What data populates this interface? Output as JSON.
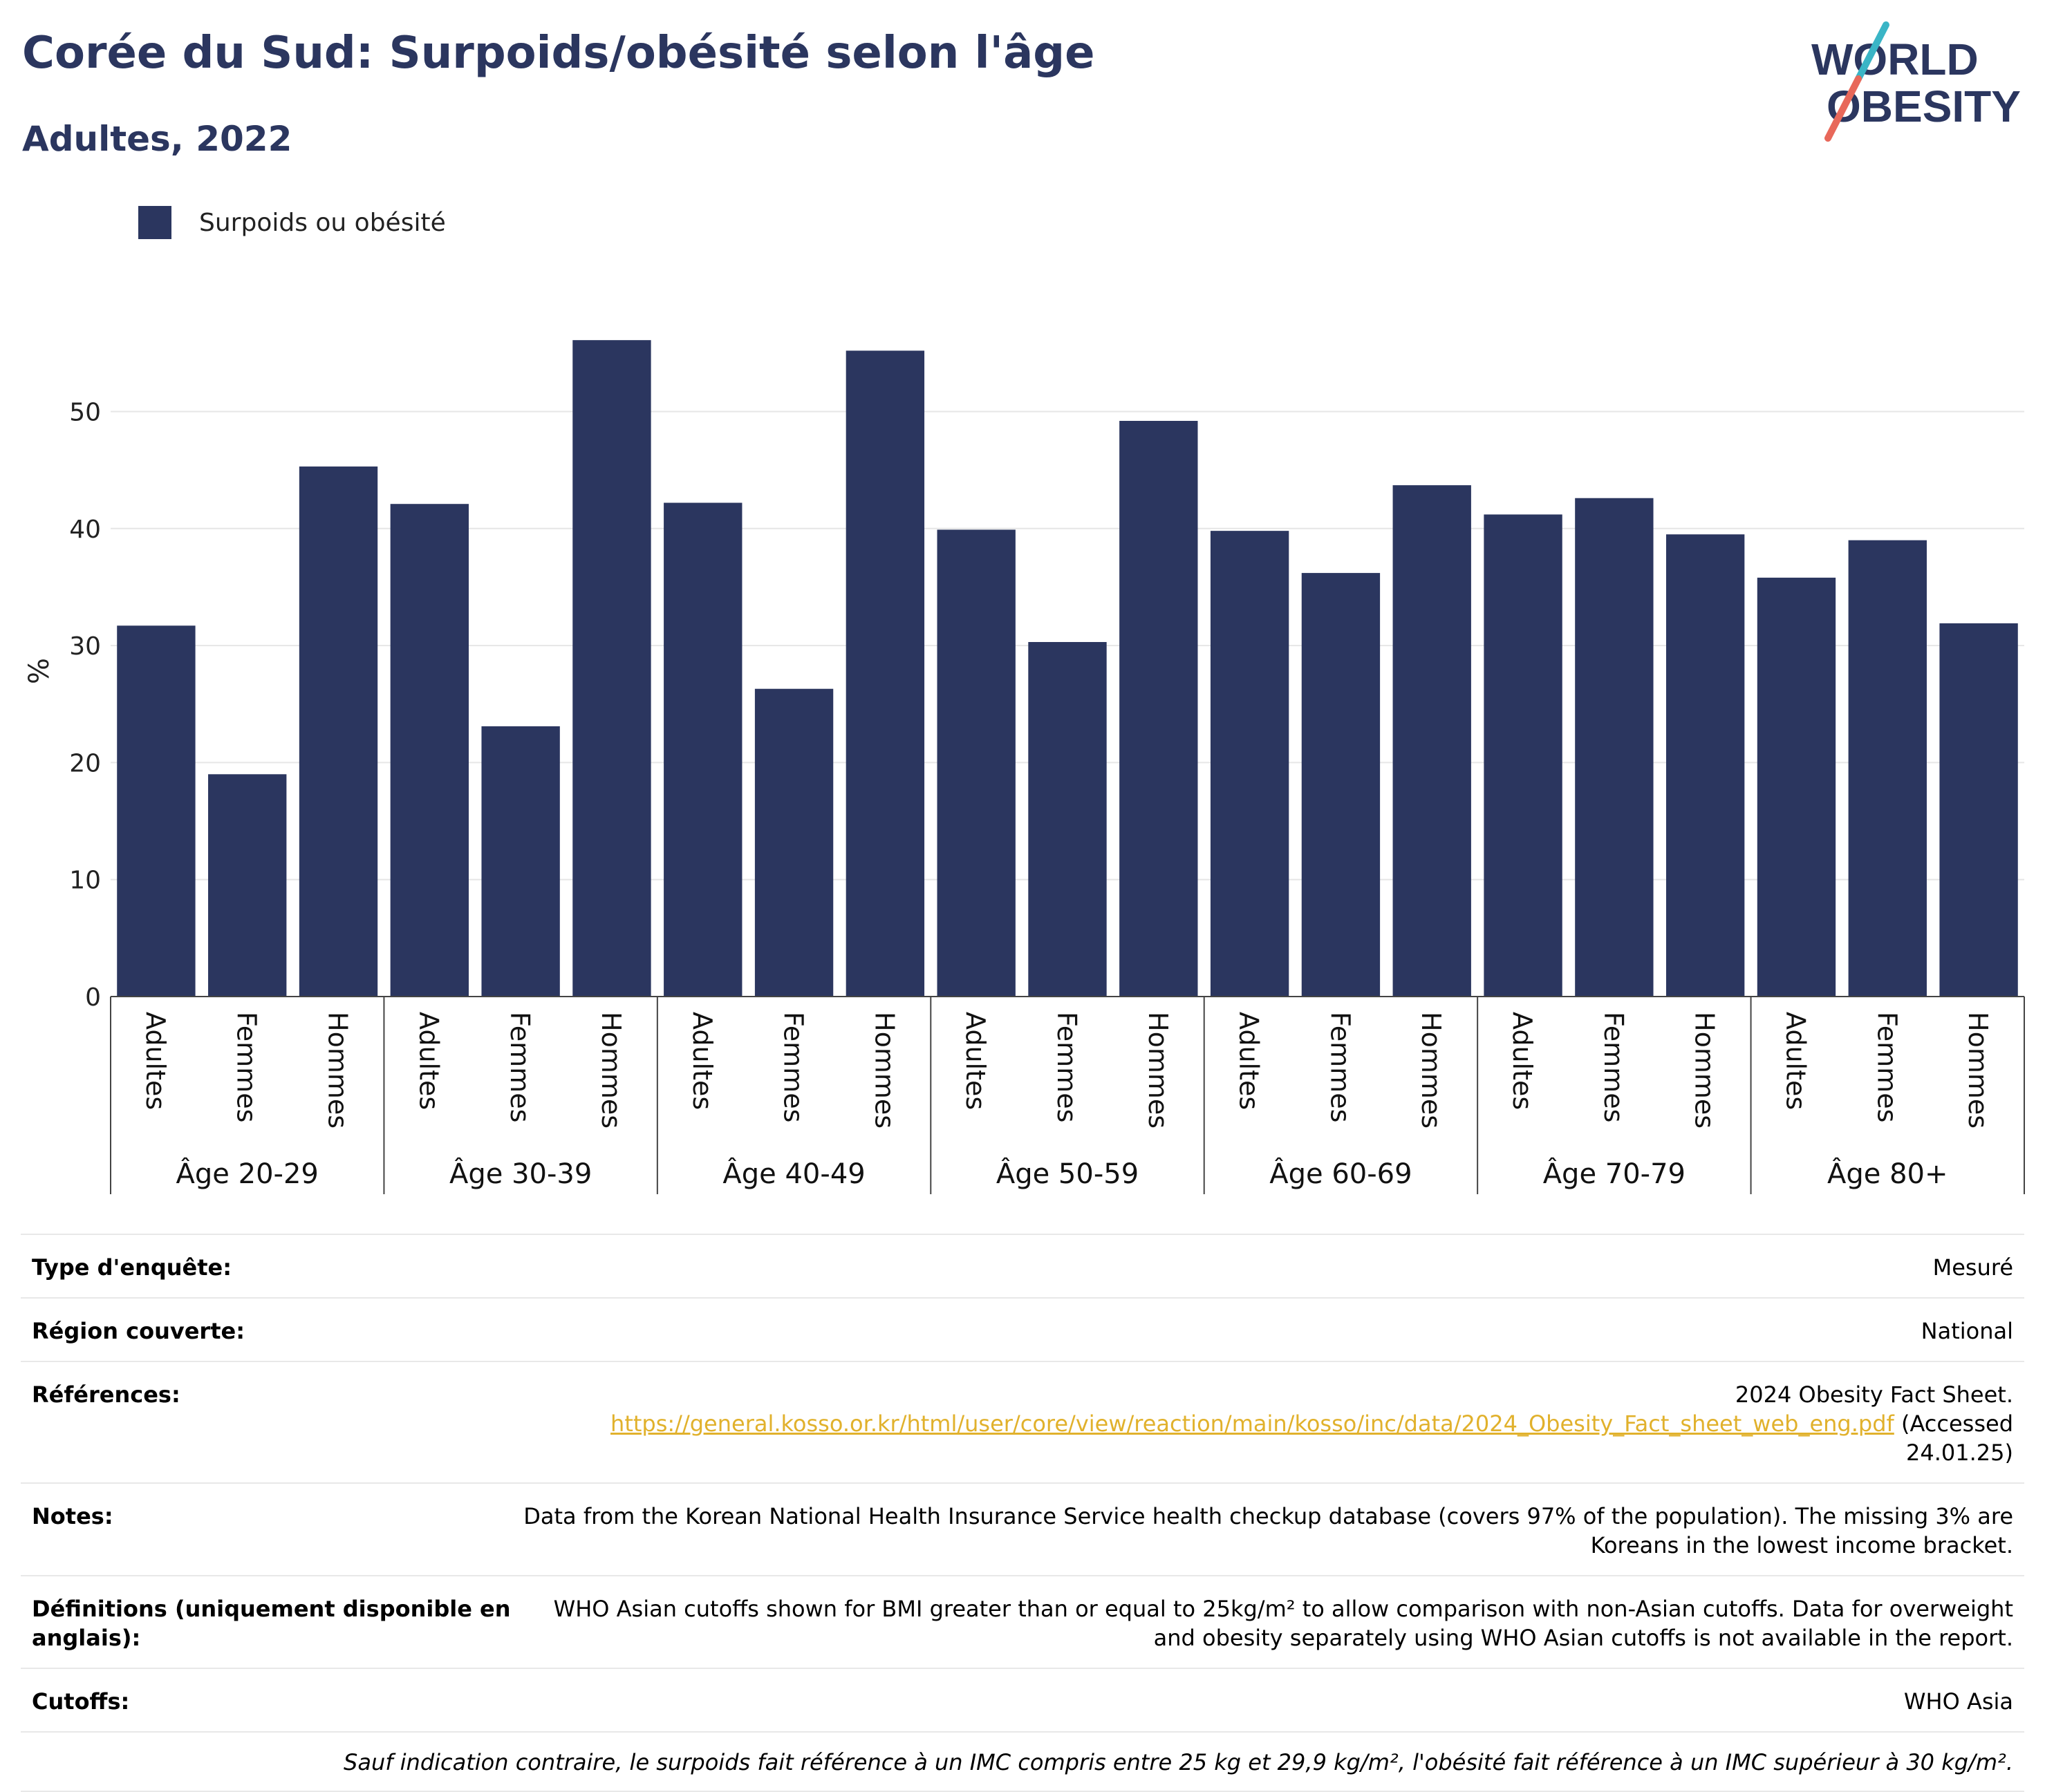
{
  "header": {
    "title": "Corée du Sud: Surpoids/obésité selon l'âge",
    "subtitle": "Adultes, 2022"
  },
  "logo": {
    "line1": "WORLD",
    "line2": "OBESITY",
    "colors": {
      "text": "#2b365f",
      "slash_top": "#3ab5c6",
      "slash_bottom": "#e8685a"
    }
  },
  "legend": {
    "label": "Surpoids ou obésité",
    "color": "#2b365f"
  },
  "chart_data": {
    "type": "bar",
    "ylabel": "%",
    "xlabel": "",
    "ylim": [
      0,
      58
    ],
    "yticks": [
      0,
      10,
      20,
      30,
      40,
      50
    ],
    "grid": true,
    "legend_position": "top-left",
    "bar_color": "#2b365f",
    "groups": [
      {
        "label": "Âge 20-29",
        "categories": [
          "Adultes",
          "Femmes",
          "Hommes"
        ],
        "values": [
          31.7,
          19.0,
          45.3
        ]
      },
      {
        "label": "Âge 30-39",
        "categories": [
          "Adultes",
          "Femmes",
          "Hommes"
        ],
        "values": [
          42.1,
          23.1,
          56.1
        ]
      },
      {
        "label": "Âge 40-49",
        "categories": [
          "Adultes",
          "Femmes",
          "Hommes"
        ],
        "values": [
          42.2,
          26.3,
          55.2
        ]
      },
      {
        "label": "Âge 50-59",
        "categories": [
          "Adultes",
          "Femmes",
          "Hommes"
        ],
        "values": [
          39.9,
          30.3,
          49.2
        ]
      },
      {
        "label": "Âge 60-69",
        "categories": [
          "Adultes",
          "Femmes",
          "Hommes"
        ],
        "values": [
          39.8,
          36.2,
          43.7
        ]
      },
      {
        "label": "Âge 70-79",
        "categories": [
          "Adultes",
          "Femmes",
          "Hommes"
        ],
        "values": [
          41.2,
          42.6,
          39.5
        ]
      },
      {
        "label": "Âge 80+",
        "categories": [
          "Adultes",
          "Femmes",
          "Hommes"
        ],
        "values": [
          35.8,
          39.0,
          31.9
        ]
      }
    ],
    "series": [
      {
        "name": "Surpoids ou obésité"
      }
    ]
  },
  "info": {
    "rows": [
      {
        "label": "Type d'enquête:",
        "value": "Mesuré"
      },
      {
        "label": "Région couverte:",
        "value": "National"
      },
      {
        "label": "Références:",
        "value_line1": "2024 Obesity Fact Sheet.",
        "link": "https://general.kosso.or.kr/html/user/core/view/reaction/main/kosso/inc/data/2024_Obesity_Fact_sheet_web_eng.pdf",
        "value_suffix": " (Accessed 24.01.25)"
      },
      {
        "label": "Notes:",
        "value": "Data from the Korean National Health Insurance Service health checkup database (covers 97% of the population). The missing 3% are Koreans in the lowest income bracket."
      },
      {
        "label": "Définitions (uniquement disponible en anglais):",
        "value": "WHO Asian cutoffs shown for BMI greater than or equal to 25kg/m² to allow comparison with non-Asian cutoffs. Data for overweight and obesity separately using WHO Asian cutoffs is not available in the report."
      },
      {
        "label": "Cutoffs:",
        "value": "WHO Asia"
      }
    ],
    "footnote": "Sauf indication contraire, le surpoids fait référence à un IMC compris entre 25 kg et 29,9 kg/m², l'obésité fait référence à un IMC supérieur à 30 kg/m²."
  }
}
